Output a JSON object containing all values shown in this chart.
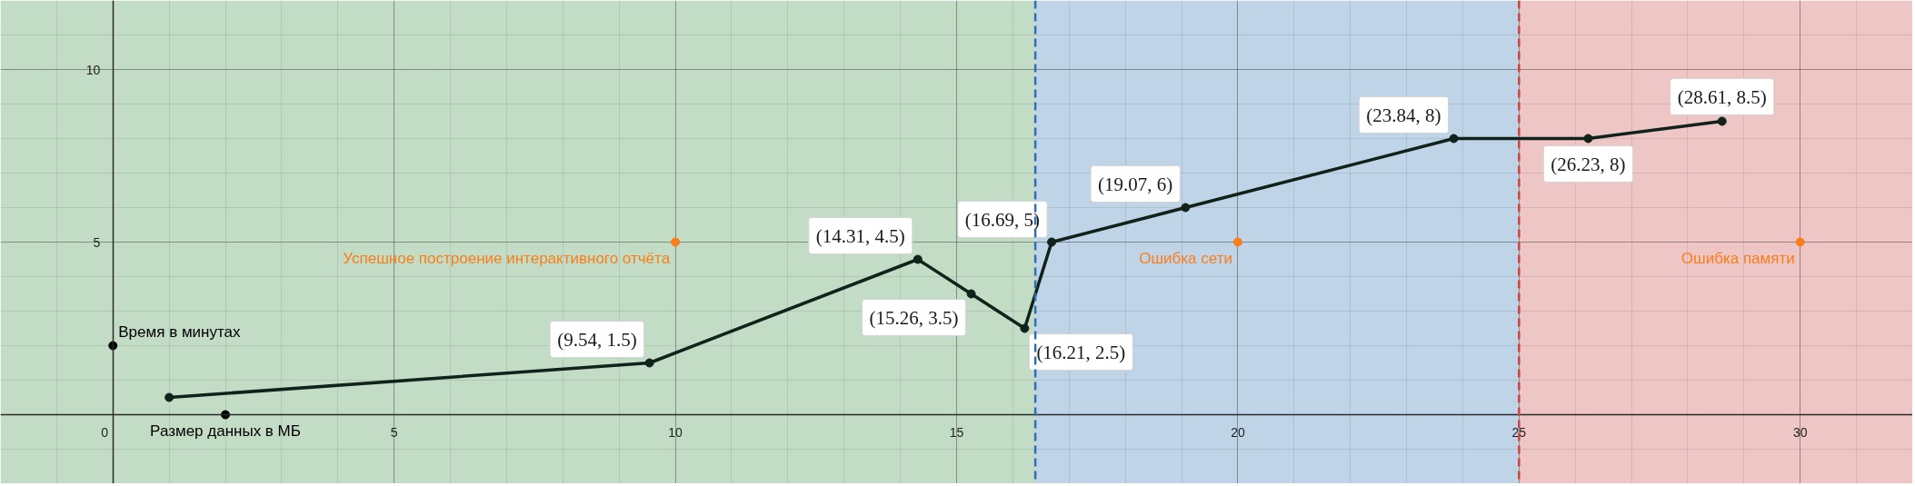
{
  "chart_data": {
    "type": "line",
    "x": [
      1,
      9.54,
      14.31,
      15.26,
      16.21,
      16.69,
      19.07,
      23.84,
      26.23,
      28.61
    ],
    "series": [
      {
        "color": "#10221a",
        "values": [
          0.5,
          1.5,
          4.5,
          3.5,
          2.5,
          5,
          6,
          8,
          8,
          8.5
        ],
        "value_labels": [
          null,
          "(9.54, 1.5)",
          "(14.31, 4.5)",
          "(15.26, 3.5)",
          "(16.21, 2.5)",
          "(16.69, 5)",
          "(19.07, 6)",
          "(23.84, 8)",
          "(26.23, 8)",
          "(28.61, 8.5)"
        ]
      },
      {
        "type": "scatter",
        "color": "#fa7e19",
        "x": [
          10,
          20,
          30
        ],
        "values": [
          5,
          5,
          5
        ]
      },
      {
        "type": "scatter",
        "color": "#000000",
        "x": [
          0,
          2
        ],
        "values": [
          2,
          0
        ]
      }
    ],
    "annotations": [
      {
        "text": "Время в минутах",
        "x": 0,
        "y": 2
      },
      {
        "text": "Размер данных в МБ",
        "x": 2,
        "y": 0
      },
      {
        "text": "Успешное построение интерактивного отчёта",
        "x": 10,
        "y": 5
      },
      {
        "text": "Ошибка сети",
        "x": 20,
        "y": 5
      },
      {
        "text": "Ошибка памяти",
        "x": 30,
        "y": 5
      }
    ],
    "bands": [
      {
        "axis": "x",
        "from": -2,
        "to": 16.4,
        "color": "#c3dcc6"
      },
      {
        "axis": "x",
        "from": 16.4,
        "to": 25,
        "color": "#c0d4e8"
      },
      {
        "axis": "x",
        "from": 25,
        "to": 32,
        "color": "#eec6c5"
      }
    ],
    "ref_lines": [
      {
        "axis": "x",
        "value": 16.4,
        "color": "#2d70b3",
        "line_style": "dashed"
      },
      {
        "axis": "x",
        "value": 25,
        "color": "#c74440",
        "line_style": "dashed"
      }
    ],
    "xlim": [
      -2,
      32
    ],
    "ylim": [
      -2,
      12
    ],
    "xticks": [
      0,
      5,
      10,
      15,
      20,
      25,
      30
    ],
    "yticks": [
      5,
      10
    ],
    "grid": true,
    "marker": "circle",
    "line_style": "solid"
  }
}
